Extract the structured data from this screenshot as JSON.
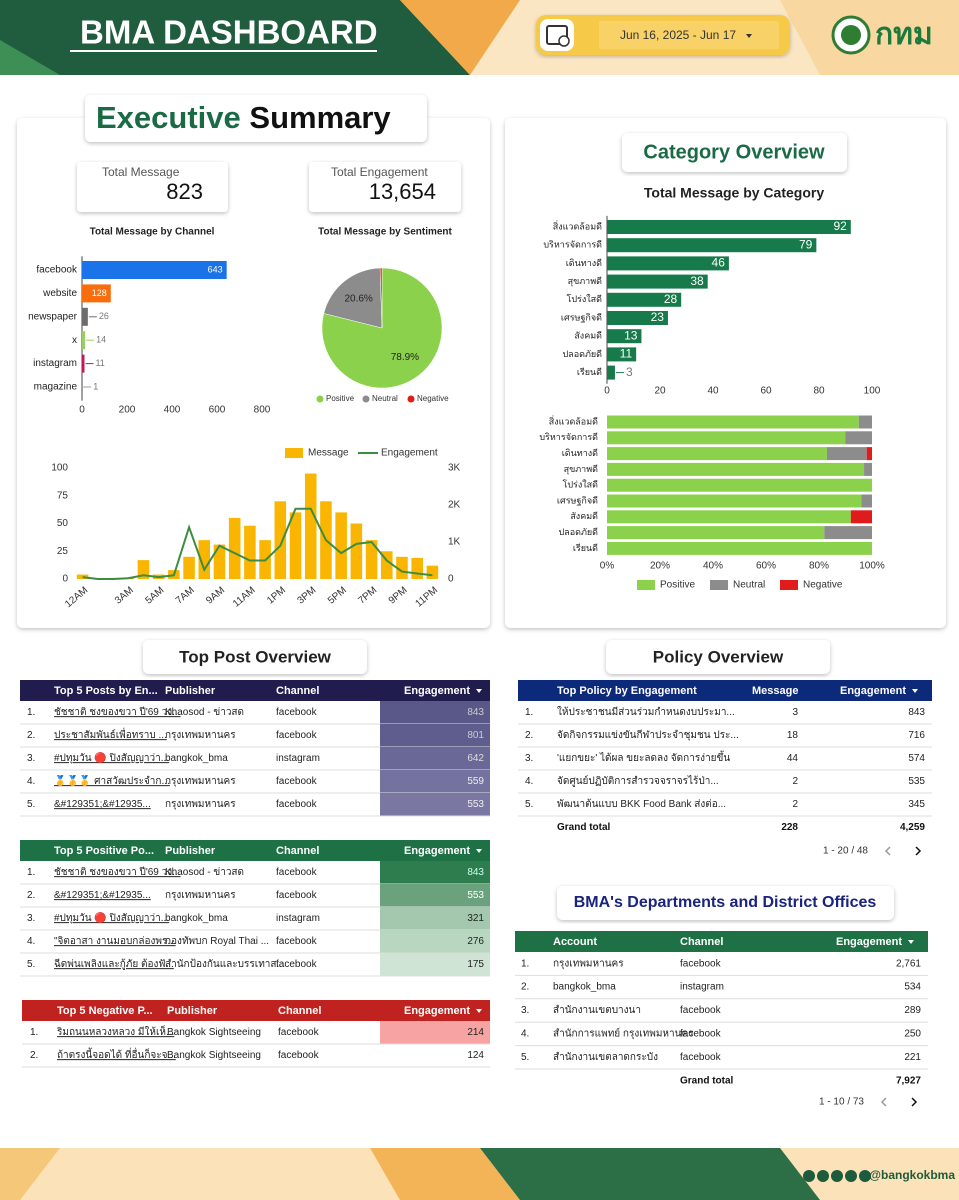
{
  "header": {
    "title": "BMA DASHBOARD",
    "date_range": "Jun 16, 2025 - Jun 17",
    "logo_text": "กทม"
  },
  "executive_summary": {
    "title_1": "Executive",
    "title_2": "Summary",
    "kpis": [
      {
        "label": "Total Message",
        "value": "823"
      },
      {
        "label": "Total Engagement",
        "value": "13,654"
      }
    ]
  },
  "category_overview": {
    "title": "Category Overview"
  },
  "chart_data": [
    {
      "type": "bar",
      "title": "Total Message by Channel",
      "categories": [
        "facebook",
        "website",
        "newspaper",
        "x",
        "instagram",
        "magazine"
      ],
      "values": [
        643,
        128,
        26,
        14,
        11,
        1
      ],
      "colors": [
        "#1a73e8",
        "#fa6d0d",
        "#6d6d6d",
        "#9ccc65",
        "#c2185b",
        "#9e9e9e"
      ],
      "xlim": [
        0,
        800
      ],
      "xticks": [
        0,
        200,
        400,
        600,
        800
      ]
    },
    {
      "type": "pie",
      "title": "Total Message by Sentiment",
      "categories": [
        "Positive",
        "Neutral",
        "Negative"
      ],
      "values": [
        78.9,
        20.6,
        0.5
      ],
      "value_labels": [
        "78.9%",
        "20.6%",
        null
      ],
      "colors": [
        "#8bd14b",
        "#8c8c8c",
        "#e01b1b"
      ]
    },
    {
      "type": "combo",
      "categories": [
        "12AM",
        null,
        null,
        "3AM",
        null,
        "5AM",
        null,
        "7AM",
        null,
        "9AM",
        null,
        "11AM",
        null,
        "1PM",
        null,
        "3PM",
        null,
        "5PM",
        null,
        "7PM",
        null,
        "9PM",
        null,
        "11PM"
      ],
      "series": [
        {
          "name": "Message",
          "type": "bar",
          "color": "#f9b500",
          "values": [
            4,
            0,
            1,
            1,
            17,
            4,
            8,
            20,
            35,
            31,
            55,
            48,
            35,
            70,
            60,
            95,
            70,
            60,
            50,
            35,
            25,
            20,
            19,
            12
          ]
        },
        {
          "name": "Engagement",
          "type": "line",
          "axis": "y2",
          "color": "#3d8c40",
          "values": [
            50,
            0,
            0,
            20,
            100,
            50,
            100,
            1400,
            250,
            900,
            700,
            500,
            500,
            900,
            1900,
            1900,
            1050,
            700,
            950,
            1000,
            500,
            200,
            150,
            100
          ]
        }
      ],
      "ylim": [
        0,
        100
      ],
      "yticks": [
        0,
        25,
        50,
        75,
        100
      ],
      "y2lim": [
        0,
        3000
      ],
      "y2ticks": [
        0,
        {
          "value": 1000,
          "label": "1K"
        },
        {
          "value": 2000,
          "label": "2K"
        },
        {
          "value": 3000,
          "label": "3K"
        }
      ]
    },
    {
      "type": "bar",
      "title": "Total Message by Category",
      "categories": [
        "สิ่งแวดล้อมดี",
        "บริหารจัดการดี",
        "เดินทางดี",
        "สุขภาพดี",
        "โปร่งใสดี",
        "เศรษฐกิจดี",
        "สังคมดี",
        "ปลอดภัยดี",
        "เรียนดี"
      ],
      "values": [
        92,
        79,
        46,
        38,
        28,
        23,
        13,
        11,
        3
      ],
      "color": "#167a4a",
      "xlim": [
        0,
        100
      ],
      "xticks": [
        0,
        20,
        40,
        60,
        80,
        100
      ]
    },
    {
      "type": "stacked_bar",
      "categories": [
        "สิ่งแวดล้อมดี",
        "บริหารจัดการดี",
        "เดินทางดี",
        "สุขภาพดี",
        "โปร่งใสดี",
        "เศรษฐกิจดี",
        "สังคมดี",
        "ปลอดภัยดี",
        "เรียนดี"
      ],
      "series": [
        {
          "name": "Positive",
          "color": "#8bd14b",
          "values": [
            95,
            90,
            83,
            97,
            100,
            96,
            92,
            82,
            100
          ]
        },
        {
          "name": "Neutral",
          "color": "#8c8c8c",
          "values": [
            5,
            10,
            15,
            3,
            0,
            4,
            0,
            18,
            0
          ]
        },
        {
          "name": "Negative",
          "color": "#e01b1b",
          "values": [
            0,
            0,
            2,
            0,
            0,
            0,
            8,
            0,
            0
          ]
        }
      ],
      "xlim": [
        0,
        100
      ],
      "xticks": [
        {
          "value": 0,
          "label": "0%"
        },
        {
          "value": 20,
          "label": "20%"
        },
        {
          "value": 40,
          "label": "40%"
        },
        {
          "value": 60,
          "label": "60%"
        },
        {
          "value": 80,
          "label": "80%"
        },
        {
          "value": 100,
          "label": "100%"
        }
      ]
    }
  ],
  "top_post_overview": {
    "title": "Top Post Overview",
    "tables": [
      {
        "columns": [
          "Top 5 Posts by En...",
          "Publisher",
          "Channel",
          "Engagement"
        ],
        "rows": [
          [
            "1.",
            "ชัชชาติ ชงของขวา ปี'69 วง...",
            "Khaosod - ข่าวสด",
            "facebook",
            "843"
          ],
          [
            "2.",
            "ประชาสัมพันธ์เพื่อทราบ ...",
            "กรุงเทพมหานคร",
            "facebook",
            "801"
          ],
          [
            "3.",
            "#ปทุมวัน 🔴 ปิงสัญญาว่า...",
            "bangkok_bma",
            "instagram",
            "642"
          ],
          [
            "4.",
            "🥇🥇🥇 ศาสวัฒประจำก...",
            "กรุงเทพมหานคร",
            "facebook",
            "559"
          ],
          [
            "5.",
            "&#129351;&#12935...",
            "กรุงเทพมหานคร",
            "facebook",
            "553"
          ]
        ]
      },
      {
        "columns": [
          "Top 5 Positive Po...",
          "Publisher",
          "Channel",
          "Engagement"
        ],
        "rows": [
          [
            "1.",
            "ชัชชาติ ชงของขวา ปี'69 วง...",
            "Khaosod - ข่าวสด",
            "facebook",
            "843"
          ],
          [
            "2.",
            "&#129351;&#12935...",
            "กรุงเทพมหานคร",
            "facebook",
            "553"
          ],
          [
            "3.",
            "#ปทุมวัน 🔴 ปิงสัญญาว่า...",
            "bangkok_bma",
            "instagram",
            "321"
          ],
          [
            "4.",
            "\"จิตอาสา งานมอบกล่องพร...",
            "กองทัพบก Royal Thai ...",
            "facebook",
            "276"
          ],
          [
            "5.",
            "ฉีดพ่นเพลิงและกู้ภัย ต้องฟั...",
            "สำนักป้องกันและบรรเทาส...",
            "facebook",
            "175"
          ]
        ]
      },
      {
        "columns": [
          "Top 5 Negative P...",
          "Publisher",
          "Channel",
          "Engagement"
        ],
        "rows": [
          [
            "1.",
            "ริมถนนหลวงหลวง มีให้เห็...",
            "Bangkok Sightseeing",
            "facebook",
            "214"
          ],
          [
            "2.",
            "ถ้าตรงนี้จอดได้ ที่อื่นก็จะจ...",
            "Bangkok Sightseeing",
            "facebook",
            "124"
          ]
        ]
      }
    ]
  },
  "policy_overview": {
    "title": "Policy Overview",
    "table": {
      "columns": [
        "Top Policy by Engagement",
        "Message",
        "Engagement"
      ],
      "rows": [
        [
          "1.",
          "ให้ประชาชนมีส่วนร่วมกำหนดงบประมา...",
          "3",
          "843"
        ],
        [
          "2.",
          "จัดกิจกรรมแข่งขันกีฬาประจำชุมชน ประ...",
          "18",
          "716"
        ],
        [
          "3.",
          "'แยกขยะ' ได้ผล ขยะลดลง จัดการง่ายขึ้น",
          "44",
          "574"
        ],
        [
          "4.",
          "จัดศูนย์ปฏิบัติการสำรวจจราจรไร้ป่า...",
          "2",
          "535"
        ],
        [
          "5.",
          "พัฒนาต้นแบบ BKK Food Bank ส่งต่อ...",
          "2",
          "345"
        ]
      ],
      "grand_total": [
        "Grand total",
        "228",
        "4,259"
      ],
      "pagination": "1 - 20 / 48"
    }
  },
  "departments": {
    "title": "BMA's Departments and District Offices",
    "table": {
      "columns": [
        "Account",
        "Channel",
        "Engagement"
      ],
      "rows": [
        [
          "1.",
          "กรุงเทพมหานคร",
          "facebook",
          "2,761"
        ],
        [
          "2.",
          "bangkok_bma",
          "instagram",
          "534"
        ],
        [
          "3.",
          "สำนักงานเขตบางนา",
          "facebook",
          "289"
        ],
        [
          "4.",
          "สำนักการแพทย์ กรุงเทพมหานคร",
          "facebook",
          "250"
        ],
        [
          "5.",
          "สำนักงานเขตลาดกระบัง",
          "facebook",
          "221"
        ]
      ],
      "grand_total": [
        "Grand total",
        "7,927"
      ],
      "pagination": "1 - 10 / 73"
    }
  },
  "footer": {
    "handle": "@bangkokbma"
  }
}
